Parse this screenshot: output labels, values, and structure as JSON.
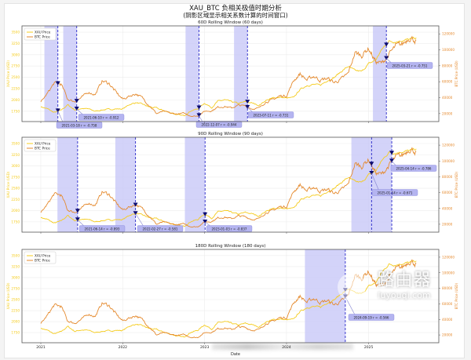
{
  "title": "XAU_BTC 负相关极值时期分析",
  "subtitle": "(阴影区域显示相关系数计算的时间窗口)",
  "watermark": {
    "cn": "路由器",
    "url": "luyouqi.com"
  },
  "colors": {
    "xau": "#F5CC1E",
    "btc": "#E58A2E",
    "shade": "#C8C8F8",
    "event": "#2828C8",
    "marker": "#0A0A6E",
    "box": "#B4B4F0"
  },
  "chart_data": {
    "type": "line",
    "xlabel": "Date",
    "ylabel_left": "XAU Price (USD)",
    "ylabel_right": "BTC Price (USD)",
    "ylim_left": [
      1520,
      3640
    ],
    "ylim_right": [
      10000,
      130000
    ],
    "yticks_left": [
      "1750",
      "2000",
      "2250",
      "2500",
      "2750",
      "3000",
      "3250",
      "3500"
    ],
    "yticks_right": [
      "20000",
      "40000",
      "60000",
      "80000",
      "100000",
      "120000"
    ],
    "xticks": [
      "2021",
      "2022",
      "2023",
      "2024",
      "2025"
    ],
    "legend": [
      "XAU Price",
      "BTC Price"
    ],
    "legend_position": "top-left",
    "x_monthly_start": "2021-01",
    "series": [
      {
        "name": "XAU Price",
        "axis": "left",
        "values": [
          1850,
          1800,
          1720,
          1770,
          1890,
          1780,
          1810,
          1800,
          1750,
          1780,
          1790,
          1800,
          1800,
          1900,
          1940,
          1900,
          1840,
          1820,
          1760,
          1720,
          1670,
          1650,
          1760,
          1800,
          1930,
          1830,
          1970,
          2000,
          1960,
          1920,
          1960,
          1930,
          1880,
          1990,
          2040,
          2060,
          2040,
          2050,
          2230,
          2320,
          2340,
          2330,
          2430,
          2500,
          2630,
          2740,
          2650,
          2630,
          2800,
          2880,
          3120,
          3300,
          3290,
          3320,
          3340,
          3380
        ]
      },
      {
        "name": "BTC Price",
        "axis": "right",
        "values": [
          34000,
          46000,
          58000,
          57000,
          38000,
          35000,
          40000,
          47000,
          44000,
          61000,
          58000,
          47000,
          38000,
          42000,
          45000,
          39000,
          30000,
          20000,
          23000,
          20500,
          19500,
          20500,
          17000,
          16800,
          23000,
          23500,
          28000,
          29000,
          27000,
          30500,
          29500,
          26000,
          27000,
          34500,
          37500,
          42000,
          42500,
          61000,
          70000,
          62000,
          67000,
          62000,
          64000,
          59000,
          63000,
          70000,
          96000,
          93500,
          102000,
          85000,
          83000,
          94000,
          104000,
          107000,
          116000,
          112000
        ]
      }
    ],
    "panels": [
      {
        "title": "60D Rolling Window (60 days)",
        "window_days": 60,
        "events": [
          {
            "date": "2021-03-18",
            "r": "-0.758",
            "label": "2021-03-18  r = -0.758"
          },
          {
            "date": "2021-06-10",
            "r": "-0.912",
            "label": "2021-06-10  r = -0.912"
          },
          {
            "date": "2022-12-07",
            "r": "-0.944",
            "label": "2022-12-07  r = -0.944"
          },
          {
            "date": "2023-07-11",
            "r": "-0.731",
            "label": "2023-07-11  r = -0.731"
          },
          {
            "date": "2025-03-21",
            "r": "-0.751",
            "label": "2025-03-21  r = -0.751"
          }
        ]
      },
      {
        "title": "90D Rolling Window (90 days)",
        "window_days": 90,
        "events": [
          {
            "date": "2021-06-14",
            "r": "-0.893",
            "label": "2021-06-14  r = -0.893"
          },
          {
            "date": "2022-02-27",
            "r": "-0.581",
            "label": "2022-02-27  r = -0.581"
          },
          {
            "date": "2023-01-03",
            "r": "-0.837",
            "label": "2023-01-03  r = -0.837"
          },
          {
            "date": "2025-01-14",
            "r": "-0.671",
            "label": "2025-01-14  r = -0.671"
          },
          {
            "date": "2025-04-14",
            "r": "-0.786",
            "label": "2025-04-14  r = -0.786"
          }
        ]
      },
      {
        "title": "180D Rolling Window (180 days)",
        "window_days": 180,
        "events": [
          {
            "date": "2024-09-19",
            "r": "-0.566",
            "label": "2024-09-19  r = -0.566"
          }
        ]
      }
    ]
  }
}
